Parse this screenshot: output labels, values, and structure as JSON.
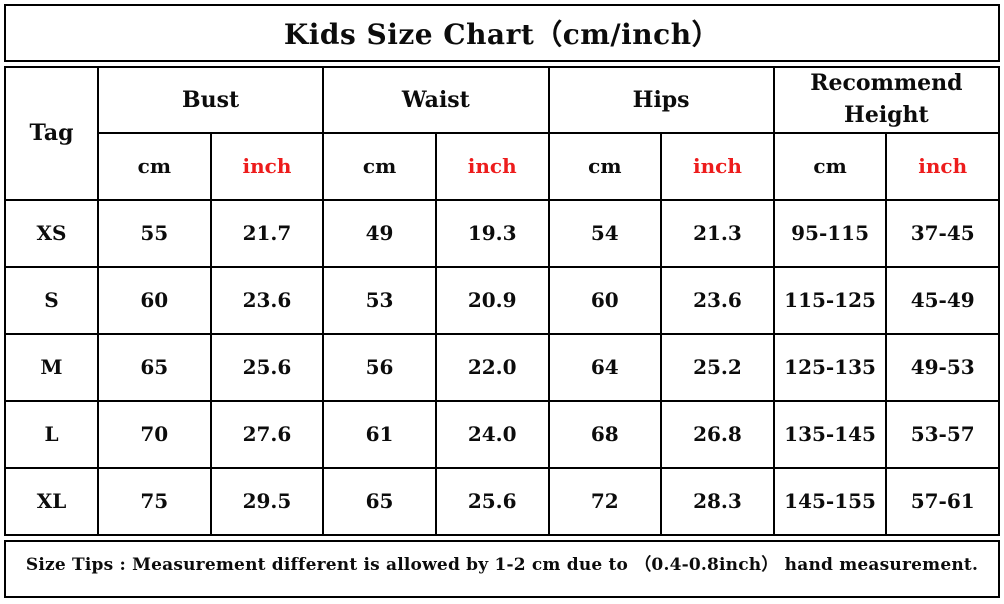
{
  "title": "Kids Size Chart（cm/inch）",
  "colors": {
    "border": "#000000",
    "text": "#0c0c0c",
    "accent_inch_red": "#ed1c1c",
    "background": "#ffffff"
  },
  "table": {
    "tag_header": "Tag",
    "unit_cm": "cm",
    "unit_inch": "inch",
    "groups": [
      {
        "label": "Bust"
      },
      {
        "label": "Waist"
      },
      {
        "label": "Hips"
      },
      {
        "label": "Recommend Height"
      }
    ],
    "rows": [
      {
        "tag": "XS",
        "bust_cm": "55",
        "bust_inch": "21.7",
        "waist_cm": "49",
        "waist_inch": "19.3",
        "hips_cm": "54",
        "hips_inch": "21.3",
        "height_cm": "95-115",
        "height_inch": "37-45"
      },
      {
        "tag": "S",
        "bust_cm": "60",
        "bust_inch": "23.6",
        "waist_cm": "53",
        "waist_inch": "20.9",
        "hips_cm": "60",
        "hips_inch": "23.6",
        "height_cm": "115-125",
        "height_inch": "45-49"
      },
      {
        "tag": "M",
        "bust_cm": "65",
        "bust_inch": "25.6",
        "waist_cm": "56",
        "waist_inch": "22.0",
        "hips_cm": "64",
        "hips_inch": "25.2",
        "height_cm": "125-135",
        "height_inch": "49-53"
      },
      {
        "tag": "L",
        "bust_cm": "70",
        "bust_inch": "27.6",
        "waist_cm": "61",
        "waist_inch": "24.0",
        "hips_cm": "68",
        "hips_inch": "26.8",
        "height_cm": "135-145",
        "height_inch": "53-57"
      },
      {
        "tag": "XL",
        "bust_cm": "75",
        "bust_inch": "29.5",
        "waist_cm": "65",
        "waist_inch": "25.6",
        "hips_cm": "72",
        "hips_inch": "28.3",
        "height_cm": "145-155",
        "height_inch": "57-61"
      }
    ]
  },
  "footer": {
    "tips": "Size Tips : Measurement different is allowed by 1-2 cm due to （0.4-0.8inch） hand measurement."
  },
  "chart_data": {
    "type": "table",
    "title": "Kids Size Chart（cm/inch）",
    "columns": [
      "Tag",
      "Bust cm",
      "Bust inch",
      "Waist cm",
      "Waist inch",
      "Hips cm",
      "Hips inch",
      "Recommend Height cm",
      "Recommend Height inch"
    ],
    "rows": [
      [
        "XS",
        55,
        21.7,
        49,
        19.3,
        54,
        21.3,
        "95-115",
        "37-45"
      ],
      [
        "S",
        60,
        23.6,
        53,
        20.9,
        60,
        23.6,
        "115-125",
        "45-49"
      ],
      [
        "M",
        65,
        25.6,
        56,
        22.0,
        64,
        25.2,
        "125-135",
        "49-53"
      ],
      [
        "L",
        70,
        27.6,
        61,
        24.0,
        68,
        26.8,
        "135-145",
        "53-57"
      ],
      [
        "XL",
        75,
        29.5,
        65,
        25.6,
        72,
        28.3,
        "145-155",
        "57-61"
      ]
    ],
    "notes": "Size Tips : Measurement different is allowed by 1-2 cm due to （0.4-0.8inch） hand measurement."
  }
}
